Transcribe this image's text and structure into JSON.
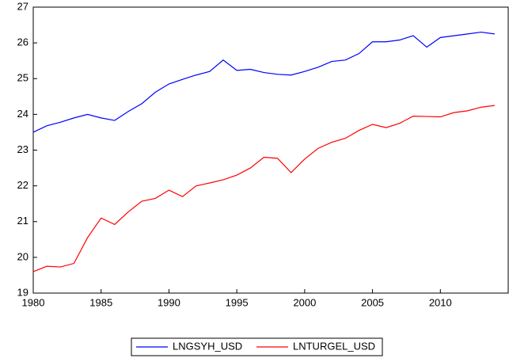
{
  "chart_data": {
    "type": "line",
    "x": [
      1980,
      1981,
      1982,
      1983,
      1984,
      1985,
      1986,
      1987,
      1988,
      1989,
      1990,
      1991,
      1992,
      1993,
      1994,
      1995,
      1996,
      1997,
      1998,
      1999,
      2000,
      2001,
      2002,
      2003,
      2004,
      2005,
      2006,
      2007,
      2008,
      2009,
      2010,
      2011,
      2012,
      2013,
      2014
    ],
    "series": [
      {
        "name": "LNGSYH_USD",
        "color": "#0000ff",
        "values": [
          23.5,
          23.68,
          23.78,
          23.9,
          24.0,
          23.9,
          23.83,
          24.08,
          24.3,
          24.62,
          24.85,
          24.98,
          25.1,
          25.2,
          25.52,
          25.23,
          25.26,
          25.17,
          25.12,
          25.1,
          25.2,
          25.32,
          25.48,
          25.52,
          25.7,
          26.03,
          26.03,
          26.08,
          26.2,
          25.88,
          26.15,
          26.2,
          26.25,
          26.3,
          26.25
        ]
      },
      {
        "name": "LNTURGEL_USD",
        "color": "#ff0000",
        "values": [
          19.6,
          19.75,
          19.73,
          19.83,
          20.55,
          21.1,
          20.92,
          21.27,
          21.57,
          21.65,
          21.88,
          21.7,
          22.0,
          22.08,
          22.17,
          22.3,
          22.5,
          22.8,
          22.77,
          22.37,
          22.75,
          23.05,
          23.22,
          23.33,
          23.55,
          23.72,
          23.63,
          23.75,
          23.95,
          23.94,
          23.93,
          24.05,
          24.1,
          24.2,
          24.25
        ]
      }
    ],
    "xlim": [
      1980,
      2015
    ],
    "xticks": [
      1980,
      1985,
      1990,
      1995,
      2000,
      2005,
      2010
    ],
    "ylim": [
      19,
      27
    ],
    "yticks": [
      19,
      20,
      21,
      22,
      23,
      24,
      25,
      26,
      27
    ],
    "legend": "bottom"
  }
}
